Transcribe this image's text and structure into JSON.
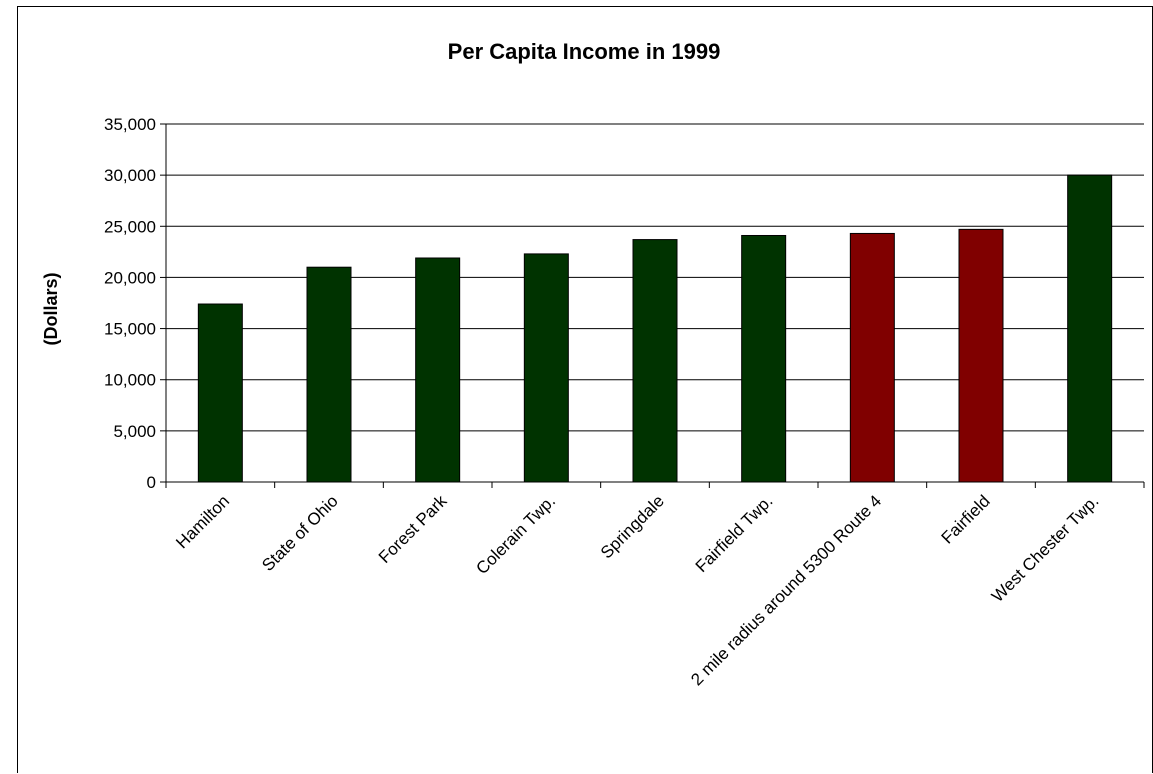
{
  "chart_data": {
    "type": "bar",
    "title": "Per Capita Income in 1999",
    "xlabel": "",
    "ylabel": "(Dollars)",
    "ylim": [
      0,
      35000
    ],
    "yticks": [
      0,
      5000,
      10000,
      15000,
      20000,
      25000,
      30000,
      35000
    ],
    "ytick_labels": [
      "0",
      "5,000",
      "10,000",
      "15,000",
      "20,000",
      "25,000",
      "30,000",
      "35,000"
    ],
    "grid": true,
    "legend": "none",
    "categories": [
      "Hamilton",
      "State of Ohio",
      "Forest Park",
      "Colerain Twp.",
      "Springdale",
      "Fairfield Twp.",
      "2 mile radius around 5300 Route 4",
      "Fairfield",
      "West Chester Twp."
    ],
    "values": [
      17400,
      21000,
      21900,
      22300,
      23700,
      24100,
      24300,
      24700,
      30000
    ],
    "bar_colors": [
      "#003300",
      "#003300",
      "#003300",
      "#003300",
      "#003300",
      "#003300",
      "#800000",
      "#800000",
      "#003300"
    ]
  }
}
